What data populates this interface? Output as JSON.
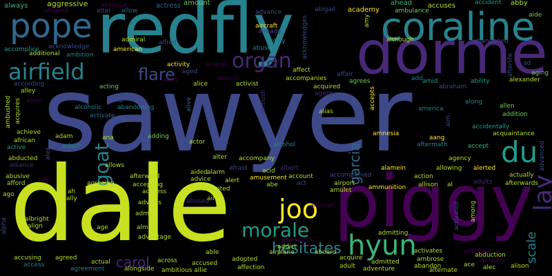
{
  "palette": {
    "purple": "#440154",
    "purple2": "#482878",
    "blue": "#3e4989",
    "blue2": "#31688e",
    "teal": "#26828e",
    "teal2": "#1f9e89",
    "green": "#35b779",
    "lime": "#6ece58",
    "yellow": "#b5de2b",
    "yellow2": "#fde725"
  },
  "words": {
    "sawyer": "sawyer",
    "redfly": "redfly",
    "dale": "dale",
    "piggy": "piggy",
    "dormer": "dormer",
    "coraline": "coraline",
    "pope": "pope",
    "airfield": "airfield",
    "organ": "organ",
    "du": "du",
    "joo": "joo",
    "hyun": "hyun",
    "morale": "morale",
    "goat": "goat",
    "garcia": "garcia",
    "flare": "flare",
    "carol": "carol",
    "hesitates": "hesitates",
    "scale": "scale",
    "lay": "lay",
    "always": "always",
    "aggressive": "aggressive",
    "absence": "absence",
    "actress": "actress",
    "amount": "amount",
    "advance": "advance",
    "abigail": "abigail",
    "academy": "academy",
    "ahead": "ahead",
    "accuses": "accuses",
    "accident": "accident",
    "abby": "abby",
    "aide": "aide",
    "allowed": "allowed",
    "altar": "altar",
    "allow": "allow",
    "aircraft": "aircraft",
    "amy": "amy",
    "ambulance": "ambulance",
    "already": "already",
    "abbey": "abbey",
    "although": "although",
    "abandoned": "abandoned",
    "accomplice": "accomplice",
    "acknowledge": "acknowledge",
    "admiral": "admiral",
    "alfred": "alfred",
    "abuse": "abuse",
    "acknowledges": "acknowledges",
    "additional": "additional",
    "ambition": "ambition",
    "american": "american",
    "afterlife": "afterlife",
    "ad": "ad",
    "aging": "aging",
    "activity": "activity",
    "amends": "amends",
    "aged": "aged",
    "affect": "affect",
    "affair": "affair",
    "abraham": "abraham",
    "ability": "ability",
    "alexander": "alexander",
    "according": "according",
    "alley": "alley",
    "acting": "acting",
    "alien": "alien",
    "abducts": "abducts",
    "alice": "alice",
    "activist": "activist",
    "accompanies": "accompanies",
    "agrees": "agrees",
    "add": "add",
    "amid": "amid",
    "acquires": "acquires",
    "ambushed": "ambushed",
    "agree": "agree",
    "alone": "alone",
    "abandoning": "abandoning",
    "acquired": "acquired",
    "agent": "agent",
    "accepts": "accepts",
    "alcoholic": "alcoholic",
    "activate": "activate",
    "alive": "alive",
    "ambush": "ambush",
    "alias": "alias",
    "america": "america",
    "along": "along",
    "allen": "allen",
    "addition": "addition",
    "achieve": "achieve",
    "african": "african",
    "active": "active",
    "adam": "adam",
    "adopt": "adopt",
    "ana": "ana",
    "adding": "adding",
    "actor": "actor",
    "alcohol": "alcohol",
    "amnesia": "amnesia",
    "aang": "aang",
    "aftermath": "aftermath",
    "accept": "accept",
    "agency": "agency",
    "aim": "aim",
    "accidentally": "accidentally",
    "acquaintance": "acquaintance",
    "advanced": "advanced",
    "abducted": "abducted",
    "alliance": "alliance",
    "alex": "alex",
    "allows": "allows",
    "alter": "alter",
    "accompany": "accompany",
    "afraid": "afraid",
    "albert": "albert",
    "aided": "aided",
    "alarm": "alarm",
    "acid": "acid",
    "alamein": "alamein",
    "allowing": "allowing",
    "alerted": "alerted",
    "actually": "actually",
    "abusive": "abusive",
    "afford": "afford",
    "ali": "ali",
    "afterward": "afterward",
    "advice": "advice",
    "alert": "alert",
    "amusement": "amusement",
    "abe": "abe",
    "account": "account",
    "act": "act",
    "accompanied": "accompanied",
    "airport": "airport",
    "amulet": "amulet",
    "ammunition": "ammunition",
    "action": "action",
    "allison": "allison",
    "al": "al",
    "adults": "adults",
    "afterwards": "afterwards",
    "ago": "ago",
    "ah": "ah",
    "agreeing": "agreeing",
    "accepting": "accepting",
    "address": "address",
    "accepted": "accepted",
    "ally": "ally",
    "abused": "abused",
    "air": "air",
    "amongst": "amongst",
    "admitting": "admitting",
    "among": "among",
    "activated": "activated",
    "albright": "albright",
    "align": "align",
    "aid": "aid",
    "advises": "advises",
    "admit": "admit",
    "alpha": "alpha",
    "age": "age",
    "almost": "almost",
    "advantage": "advantage",
    "ambassador": "ambassador",
    "addict": "addict",
    "adoptive": "adoptive",
    "abduction": "abduction",
    "alison": "alison",
    "accusing": "accusing",
    "agreed": "agreed",
    "able": "able",
    "activates": "activates",
    "ambrose": "ambrose",
    "abruptly": "abruptly",
    "access": "access",
    "actual": "actual",
    "across": "across",
    "adopted": "adopted",
    "airplane": "airplane",
    "aboard": "aboard",
    "acquire": "acquire",
    "admitted": "admitted",
    "abandon": "abandon",
    "ace": "ace",
    "alec": "alec",
    "agreement": "agreement",
    "alongside": "alongside",
    "ambitious allie": "ambitious allie",
    "accused": "accused",
    "affection": "affection",
    "adult": "adult",
    "adventure": "adventure",
    "alternate": "alternate"
  }
}
